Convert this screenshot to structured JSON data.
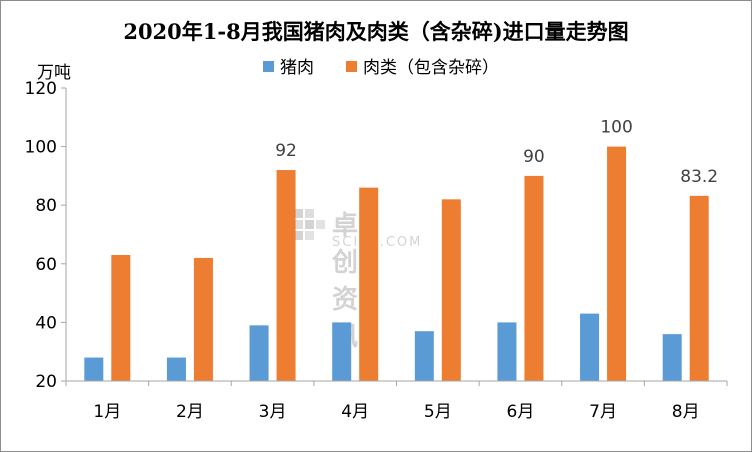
{
  "chart_data": {
    "type": "bar",
    "title": "2020年1-8月我国猪肉及肉类（含杂碎)进口量走势图",
    "ylabel": "万吨",
    "ylim": [
      20,
      120
    ],
    "yticks": [
      20,
      40,
      60,
      80,
      100,
      120
    ],
    "categories": [
      "1月",
      "2月",
      "3月",
      "4月",
      "5月",
      "6月",
      "7月",
      "8月"
    ],
    "series": [
      {
        "name": "猪肉",
        "color": "#5b9bd5",
        "values": [
          28,
          28,
          39,
          40,
          37,
          40,
          43,
          36
        ]
      },
      {
        "name": "肉类（包含杂碎）",
        "color": "#ed7d31",
        "values": [
          63,
          62,
          92,
          86,
          82,
          90,
          100,
          83.2
        ]
      }
    ],
    "data_labels": [
      {
        "category": "3月",
        "series": 1,
        "text": "92"
      },
      {
        "category": "6月",
        "series": 1,
        "text": "90"
      },
      {
        "category": "7月",
        "series": 1,
        "text": "100"
      },
      {
        "category": "8月",
        "series": 1,
        "text": "83.2"
      }
    ],
    "legend_position": "top-center",
    "grid": false
  },
  "watermark": {
    "cn": "卓创资讯",
    "en": "SCI99.COM"
  }
}
